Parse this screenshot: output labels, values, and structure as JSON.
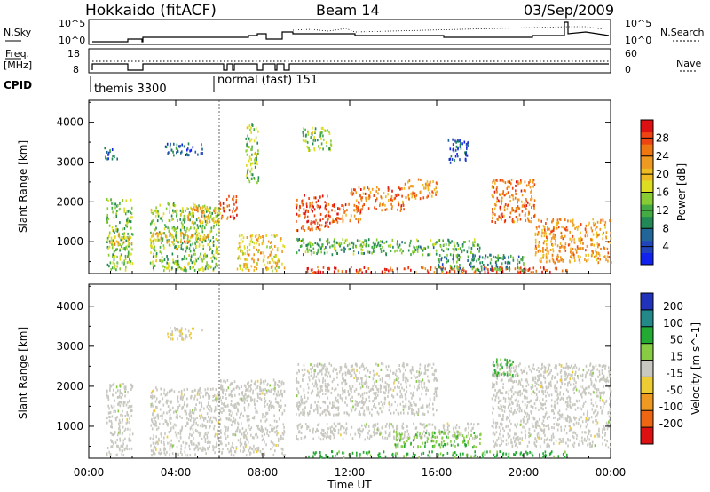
{
  "header": {
    "title": "Hokkaido (fitACF)",
    "beam": "Beam 14",
    "date": "03/Sep/2009"
  },
  "top_strip": {
    "left_label": "N.Sky",
    "right_label": "N.Search",
    "left_ticks": [
      "10^5",
      "10^0"
    ],
    "right_ticks": [
      "10^5",
      "10^0"
    ]
  },
  "freq_strip": {
    "label_line1": "Freq.",
    "label_line2": "[MHz]",
    "right_label": "Nave",
    "left_ticks": [
      "18",
      "8"
    ],
    "right_ticks": [
      "60",
      "0"
    ]
  },
  "cpid_strip": {
    "label": "CPID",
    "modes": [
      "themis 3300",
      "normal (fast) 151"
    ]
  },
  "chart_data": [
    {
      "type": "heatmap",
      "panel": "power",
      "ylabel": "Slant Range [km]",
      "xlabel": "",
      "x_ticks": [
        "00:00",
        "04:00",
        "08:00",
        "12:00",
        "16:00",
        "20:00",
        "00:00"
      ],
      "x_hours": [
        0,
        4,
        8,
        12,
        16,
        20,
        24
      ],
      "y_ticks": [
        1000,
        2000,
        3000,
        4000
      ],
      "ylim": [
        200,
        4550
      ],
      "colorbar": {
        "label": "Power [dB]",
        "ticks": [
          "4",
          "8",
          "12",
          "16",
          "20",
          "24",
          "28"
        ],
        "tick_values": [
          4,
          8,
          12,
          16,
          20,
          24,
          28
        ],
        "range": [
          0,
          32
        ],
        "colors": [
          "#1122ee",
          "#2244bb",
          "#226699",
          "#228855",
          "#44aa44",
          "#88cc33",
          "#dddd22",
          "#eebb22",
          "#ee9922",
          "#ee7711",
          "#ee4411",
          "#dd1111"
        ]
      },
      "echo_regions": [
        {
          "t": [
            0.8,
            2.0
          ],
          "r": [
            300,
            2100
          ],
          "v": 14
        },
        {
          "t": [
            0.8,
            2.0
          ],
          "r": [
            950,
            1200
          ],
          "v": 22
        },
        {
          "t": [
            0.7,
            1.3
          ],
          "r": [
            3100,
            3400
          ],
          "v": 6
        },
        {
          "t": [
            2.8,
            6.0
          ],
          "r": [
            300,
            2000
          ],
          "v": 14
        },
        {
          "t": [
            2.8,
            5.5
          ],
          "r": [
            1000,
            1250
          ],
          "v": 22
        },
        {
          "t": [
            4.5,
            6.0
          ],
          "r": [
            1500,
            1900
          ],
          "v": 22
        },
        {
          "t": [
            3.5,
            5.2
          ],
          "r": [
            3200,
            3500
          ],
          "v": 6
        },
        {
          "t": [
            6.0,
            6.8
          ],
          "r": [
            1600,
            2200
          ],
          "v": 28
        },
        {
          "t": [
            6.8,
            9.0
          ],
          "r": [
            300,
            1200
          ],
          "v": 20
        },
        {
          "t": [
            7.2,
            7.8
          ],
          "r": [
            2500,
            4000
          ],
          "v": 14
        },
        {
          "t": [
            9.5,
            11.0
          ],
          "r": [
            1300,
            2200
          ],
          "v": 28
        },
        {
          "t": [
            11.0,
            12.5
          ],
          "r": [
            1500,
            2000
          ],
          "v": 26
        },
        {
          "t": [
            12.0,
            14.5
          ],
          "r": [
            1800,
            2400
          ],
          "v": 25
        },
        {
          "t": [
            14.5,
            16.0
          ],
          "r": [
            2100,
            2600
          ],
          "v": 24
        },
        {
          "t": [
            9.5,
            18.0
          ],
          "r": [
            700,
            1100
          ],
          "v": 12
        },
        {
          "t": [
            10.0,
            22.0
          ],
          "r": [
            250,
            400
          ],
          "v": 28
        },
        {
          "t": [
            16.0,
            20.0
          ],
          "r": [
            300,
            700
          ],
          "v": 10
        },
        {
          "t": [
            18.5,
            20.5
          ],
          "r": [
            1500,
            2600
          ],
          "v": 25
        },
        {
          "t": [
            20.5,
            24.0
          ],
          "r": [
            500,
            1600
          ],
          "v": 23
        },
        {
          "t": [
            16.5,
            17.5
          ],
          "r": [
            3000,
            3600
          ],
          "v": 4
        },
        {
          "t": [
            9.8,
            11.2
          ],
          "r": [
            3300,
            3900
          ],
          "v": 14
        }
      ]
    },
    {
      "type": "heatmap",
      "panel": "velocity",
      "ylabel": "Slant Range [km]",
      "xlabel": "Time UT",
      "x_ticks": [
        "00:00",
        "04:00",
        "08:00",
        "12:00",
        "16:00",
        "20:00",
        "00:00"
      ],
      "x_hours": [
        0,
        4,
        8,
        12,
        16,
        20,
        24
      ],
      "y_ticks": [
        1000,
        2000,
        3000,
        4000
      ],
      "ylim": [
        200,
        4550
      ],
      "colorbar": {
        "label": "Velocity [m s^-1]",
        "ticks": [
          "200",
          "100",
          "50",
          "15",
          "-15",
          "-50",
          "-100",
          "-200"
        ],
        "colors": [
          "#2233bb",
          "#228888",
          "#22aa33",
          "#88cc44",
          "#c8c8c0",
          "#eecc33",
          "#ee9922",
          "#ee6611",
          "#dd1111"
        ]
      },
      "echo_regions": [
        {
          "t": [
            0.8,
            2.0
          ],
          "r": [
            300,
            2100
          ],
          "v": 0
        },
        {
          "t": [
            2.8,
            6.0
          ],
          "r": [
            300,
            2000
          ],
          "v": 0
        },
        {
          "t": [
            3.5,
            5.2
          ],
          "r": [
            3200,
            3500
          ],
          "v": -20
        },
        {
          "t": [
            6.0,
            9.0
          ],
          "r": [
            300,
            2200
          ],
          "v": 0
        },
        {
          "t": [
            9.5,
            16.0
          ],
          "r": [
            1300,
            2600
          ],
          "v": 0
        },
        {
          "t": [
            9.5,
            18.0
          ],
          "r": [
            700,
            1100
          ],
          "v": 0
        },
        {
          "t": [
            10.0,
            22.0
          ],
          "r": [
            250,
            400
          ],
          "v": 60
        },
        {
          "t": [
            14.0,
            18.0
          ],
          "r": [
            500,
            900
          ],
          "v": 40
        },
        {
          "t": [
            18.5,
            24.0
          ],
          "r": [
            500,
            2600
          ],
          "v": 0
        },
        {
          "t": [
            18.5,
            19.5
          ],
          "r": [
            2300,
            2700
          ],
          "v": 60
        }
      ]
    }
  ]
}
